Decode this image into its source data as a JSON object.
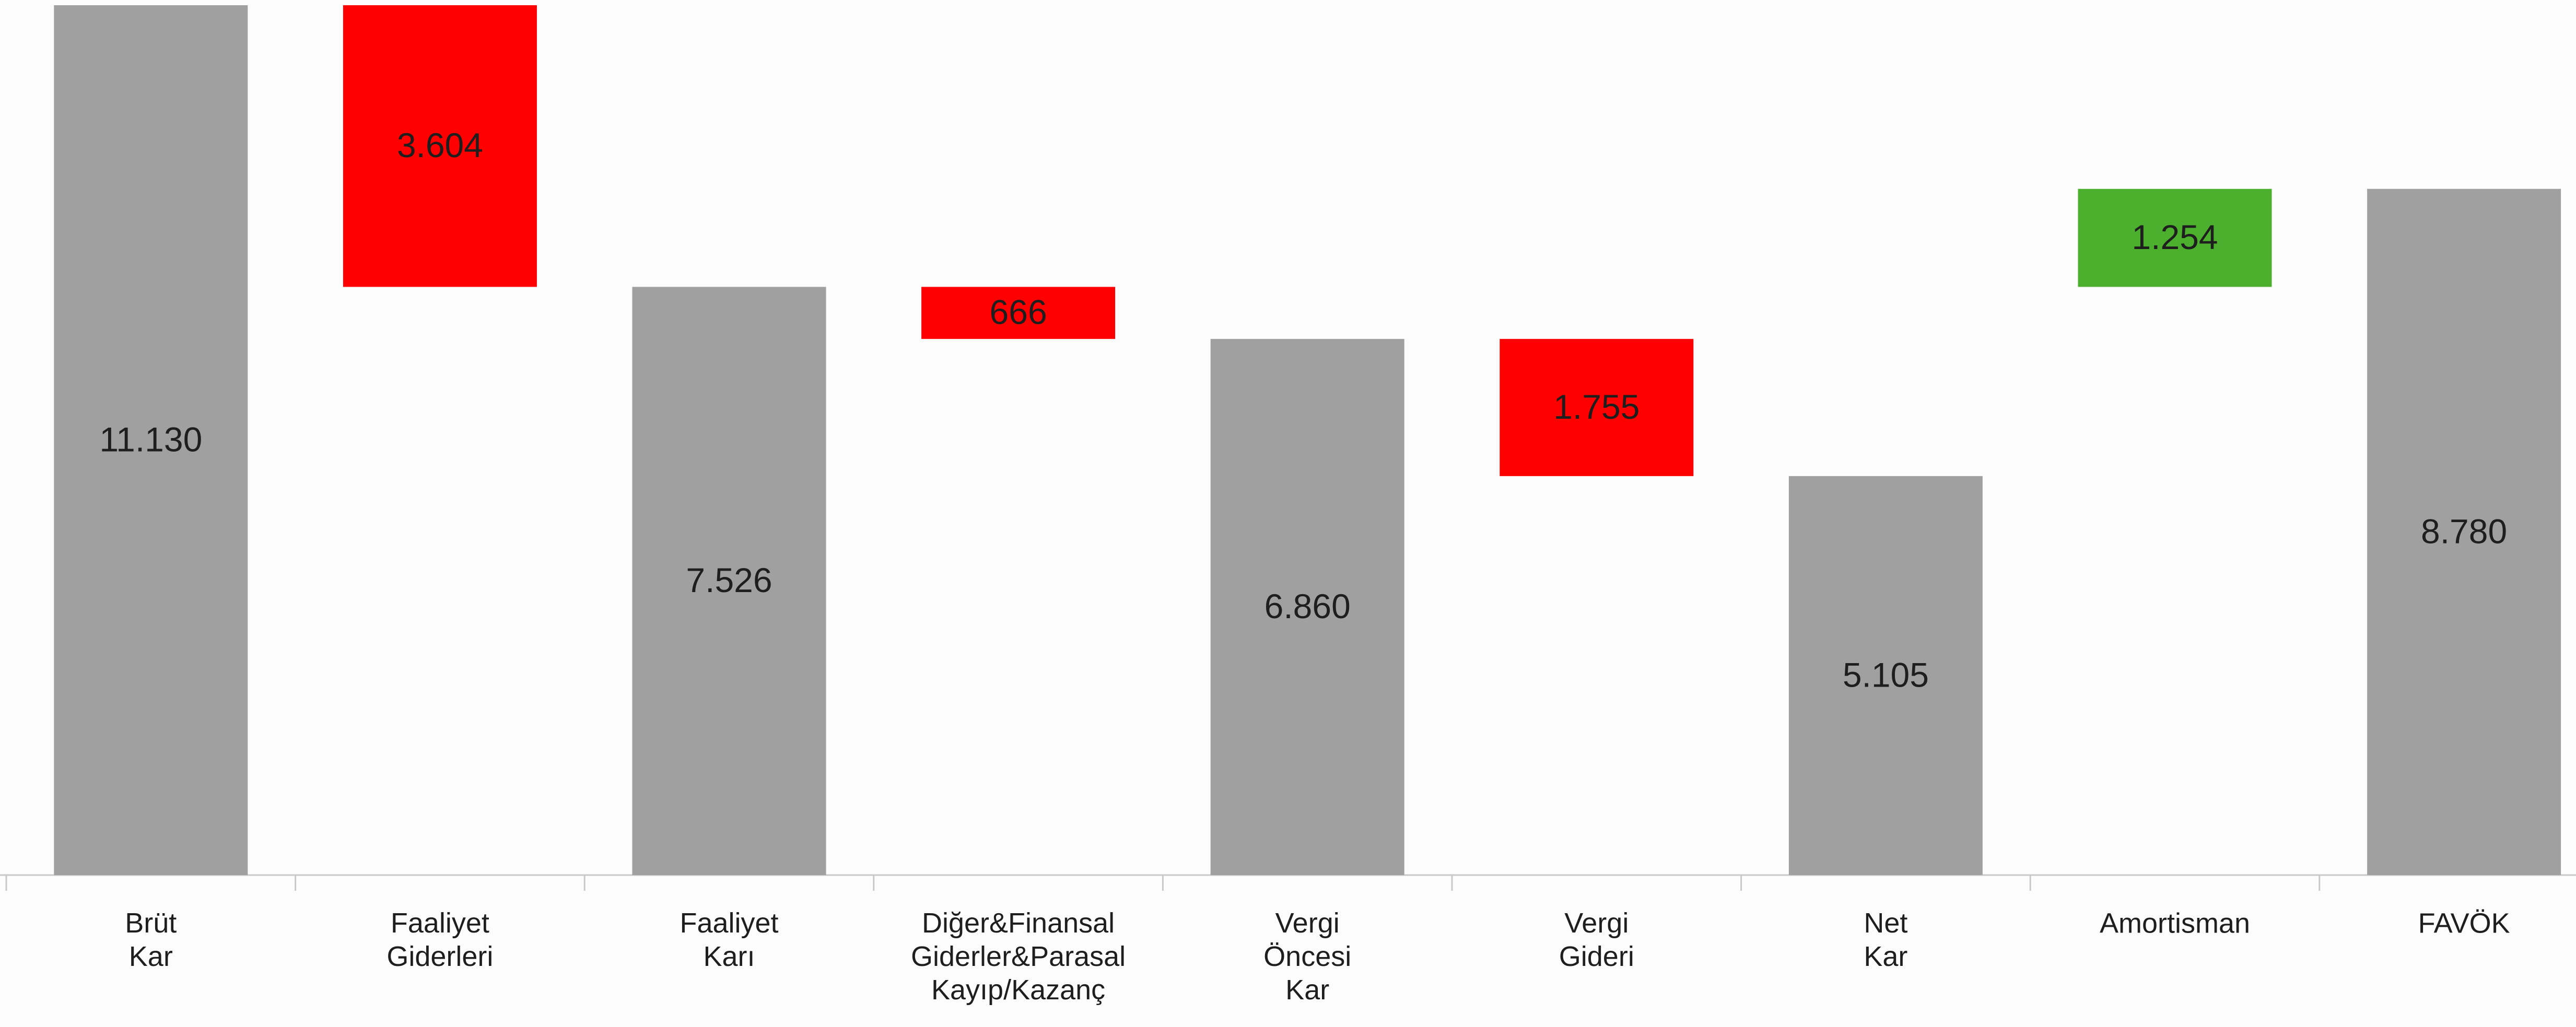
{
  "chart_data": {
    "type": "waterfall",
    "categories": [
      "Brüt Kar",
      "Faaliyet Giderleri",
      "Faaliyet Karı",
      "Diğer&Finansal Giderler&Parasal Kayıp/Kazanç",
      "Vergi Öncesi Kar",
      "Vergi Gideri",
      "Net Kar",
      "Amortisman",
      "FAVÖK"
    ],
    "measure": [
      "absolute",
      "relative",
      "absolute",
      "relative",
      "absolute",
      "relative",
      "absolute",
      "relative",
      "absolute"
    ],
    "values": [
      11130,
      -3604,
      7526,
      -666,
      6860,
      -1755,
      5105,
      1254,
      8780
    ],
    "value_labels": [
      "11.130",
      "3.604",
      "7.526",
      "666",
      "6.860",
      "1.755",
      "5.105",
      "1.254",
      "8.780"
    ],
    "colors": [
      "#a0a0a0",
      "#ff0000",
      "#a0a0a0",
      "#ff0000",
      "#a0a0a0",
      "#ff0000",
      "#a0a0a0",
      "#4caf2e",
      "#a0a0a0"
    ]
  }
}
